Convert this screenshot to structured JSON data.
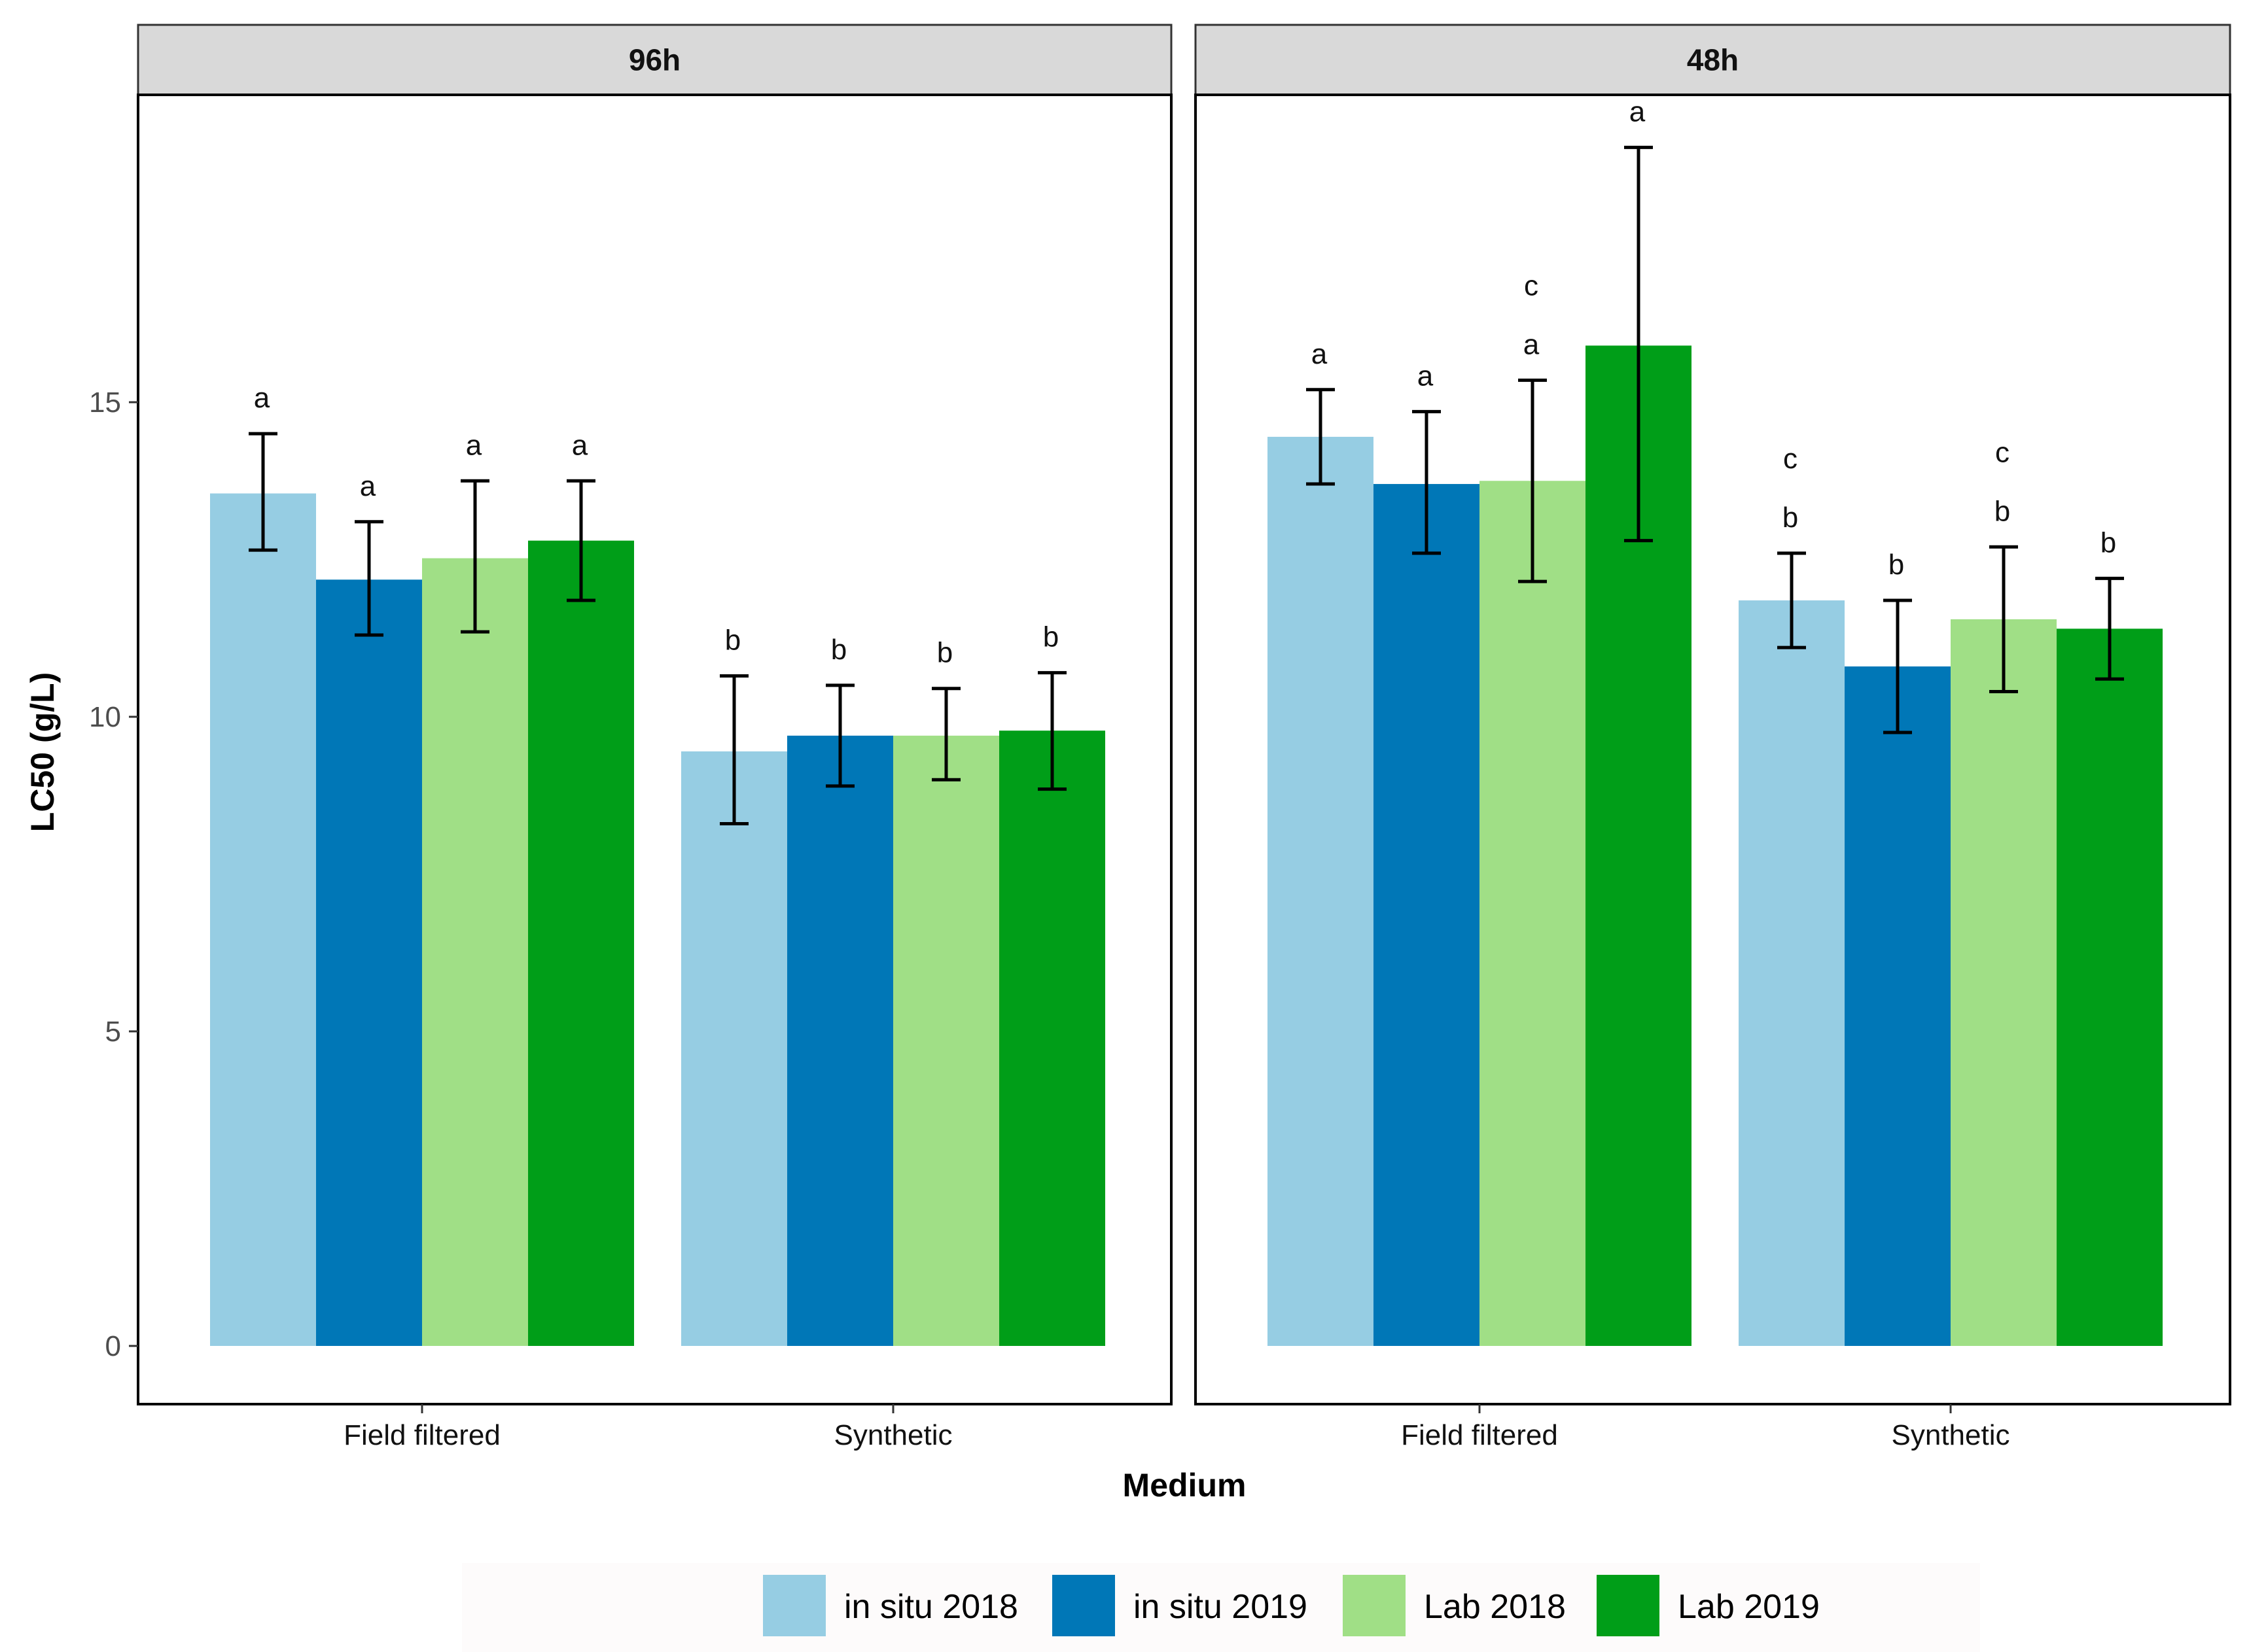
{
  "chart_data": {
    "type": "bar",
    "ylabel": "LC50 (g/L)",
    "xlabel": "Medium",
    "ylim": [
      -0.9,
      20
    ],
    "yticks": [
      0,
      5,
      10,
      15
    ],
    "categories": [
      "Field filtered",
      "Synthetic"
    ],
    "series_names": [
      "in situ 2018",
      "in situ 2019",
      "Lab 2018",
      "Lab 2019"
    ],
    "colors": [
      "#96cde3",
      "#0077b7",
      "#a0df86",
      "#009e18"
    ],
    "panels": [
      {
        "title": "96h",
        "groups": [
          {
            "category": "Field filtered",
            "values": [
              13.55,
              12.18,
              12.52,
              12.8
            ],
            "err_low": [
              12.65,
              11.3,
              11.35,
              11.85
            ],
            "err_high": [
              14.5,
              13.1,
              13.75,
              13.75
            ],
            "sig": [
              [
                "a"
              ],
              [
                "a"
              ],
              [
                "a"
              ],
              [
                "a"
              ]
            ]
          },
          {
            "category": "Synthetic",
            "values": [
              9.45,
              9.7,
              9.7,
              9.78
            ],
            "err_low": [
              8.3,
              8.9,
              9.0,
              8.85
            ],
            "err_high": [
              10.65,
              10.5,
              10.45,
              10.7
            ],
            "sig": [
              [
                "b"
              ],
              [
                "b"
              ],
              [
                "b"
              ],
              [
                "b"
              ]
            ]
          }
        ]
      },
      {
        "title": "48h",
        "groups": [
          {
            "category": "Field filtered",
            "values": [
              14.45,
              13.7,
              13.75,
              15.9
            ],
            "err_low": [
              13.7,
              12.6,
              12.15,
              12.8
            ],
            "err_high": [
              15.2,
              14.85,
              15.35,
              19.05
            ],
            "sig": [
              [
                "a"
              ],
              [
                "a"
              ],
              [
                "a",
                "c"
              ],
              [
                "a"
              ]
            ]
          },
          {
            "category": "Synthetic",
            "values": [
              11.85,
              10.8,
              11.55,
              11.4
            ],
            "err_low": [
              11.1,
              9.75,
              10.4,
              10.6
            ],
            "err_high": [
              12.6,
              11.85,
              12.7,
              12.2
            ],
            "sig": [
              [
                "b",
                "c"
              ],
              [
                "b"
              ],
              [
                "b",
                "c"
              ],
              [
                "b"
              ]
            ]
          }
        ]
      }
    ]
  }
}
